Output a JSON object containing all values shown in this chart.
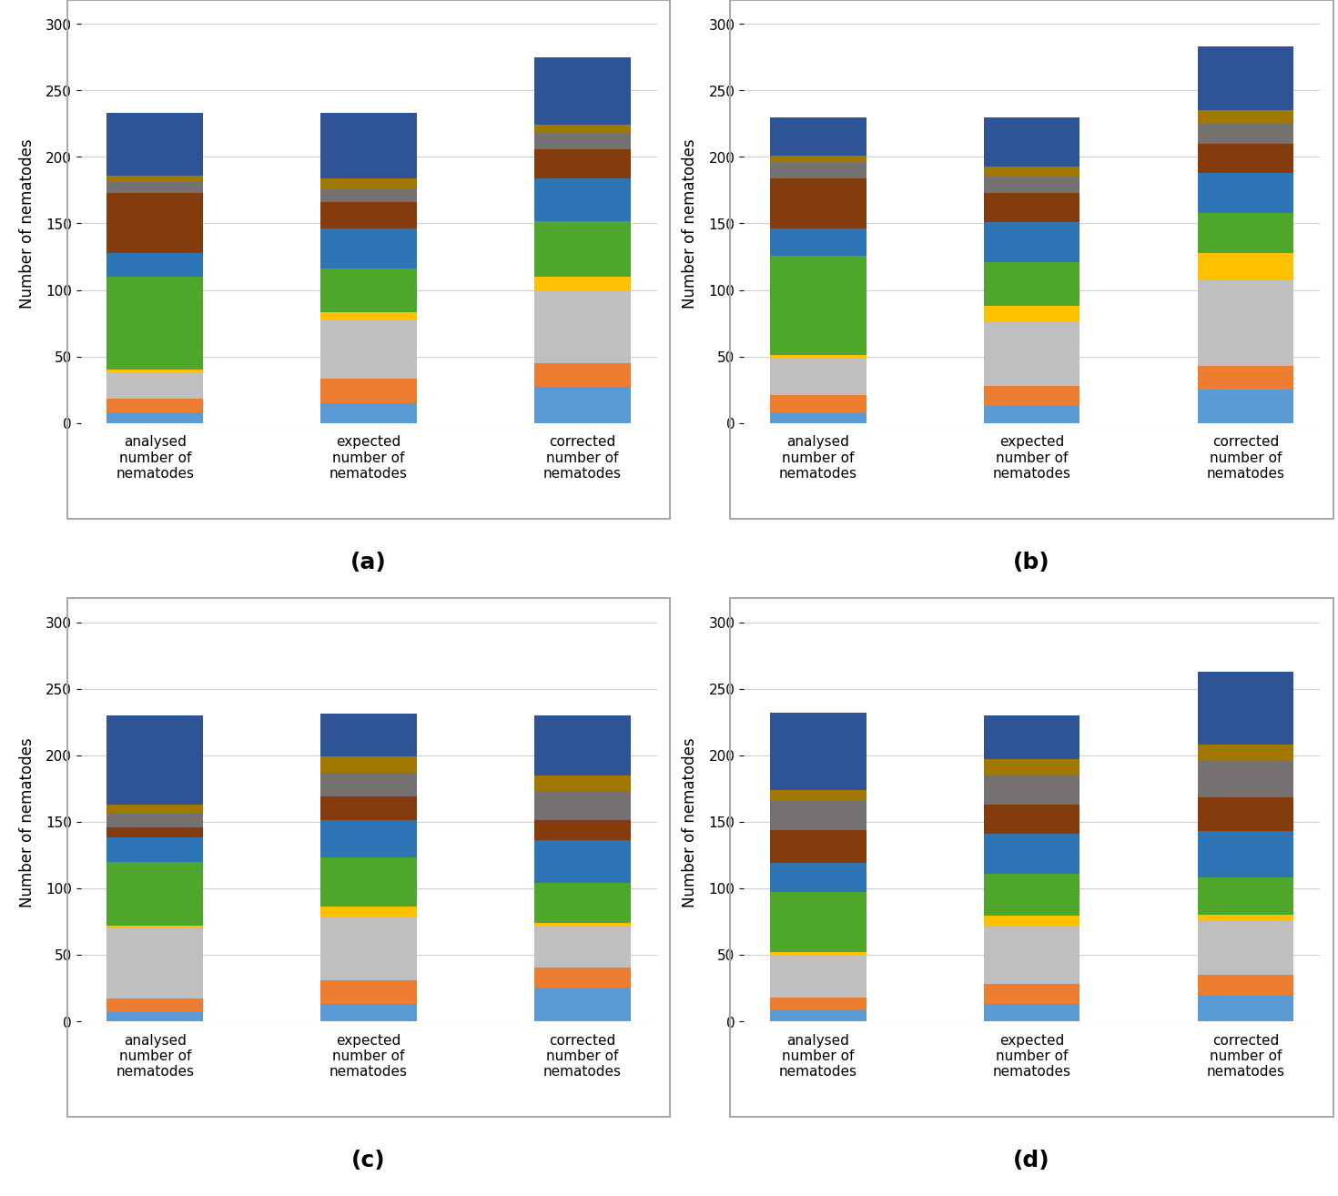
{
  "subplots": [
    {
      "key": "a",
      "label": "(a)",
      "data": {
        "analysed": [
          8,
          10,
          20,
          2,
          70,
          18,
          45,
          8,
          5,
          47
        ],
        "expected": [
          15,
          18,
          45,
          5,
          33,
          30,
          20,
          10,
          8,
          49
        ],
        "corrected": [
          27,
          18,
          55,
          10,
          42,
          32,
          22,
          12,
          6,
          51
        ]
      }
    },
    {
      "key": "b",
      "label": "(b)",
      "data": {
        "analysed": [
          8,
          13,
          28,
          2,
          75,
          20,
          38,
          12,
          5,
          29
        ],
        "expected": [
          13,
          15,
          48,
          12,
          33,
          30,
          22,
          12,
          8,
          37
        ],
        "corrected": [
          25,
          18,
          65,
          20,
          30,
          30,
          22,
          15,
          10,
          48
        ]
      }
    },
    {
      "key": "c",
      "label": "(c)",
      "data": {
        "analysed": [
          7,
          10,
          53,
          2,
          48,
          18,
          8,
          10,
          7,
          67
        ],
        "expected": [
          13,
          18,
          47,
          8,
          37,
          28,
          18,
          18,
          12,
          32
        ],
        "corrected": [
          25,
          15,
          32,
          2,
          30,
          32,
          15,
          22,
          12,
          45
        ]
      }
    },
    {
      "key": "d",
      "label": "(d)",
      "data": {
        "analysed": [
          8,
          10,
          32,
          2,
          45,
          22,
          25,
          22,
          8,
          58
        ],
        "expected": [
          13,
          15,
          43,
          8,
          32,
          30,
          22,
          22,
          12,
          33
        ],
        "corrected": [
          20,
          15,
          40,
          5,
          28,
          35,
          25,
          28,
          12,
          55
        ]
      }
    }
  ],
  "colors": [
    "#5B9BD5",
    "#ED7D31",
    "#BFBFBF",
    "#FFC000",
    "#4EA72A",
    "#2E75B6",
    "#843C0C",
    "#767171",
    "#A07800",
    "#2F5496"
  ],
  "categories": [
    "analysed\nnumber of\nnematodes",
    "expected\nnumber of\nnematodes",
    "corrected\nnumber of\nnematodes"
  ],
  "ylabel": "Number of nematodes",
  "ylim": [
    0,
    300
  ],
  "yticks": [
    0,
    50,
    100,
    150,
    200,
    250,
    300
  ]
}
